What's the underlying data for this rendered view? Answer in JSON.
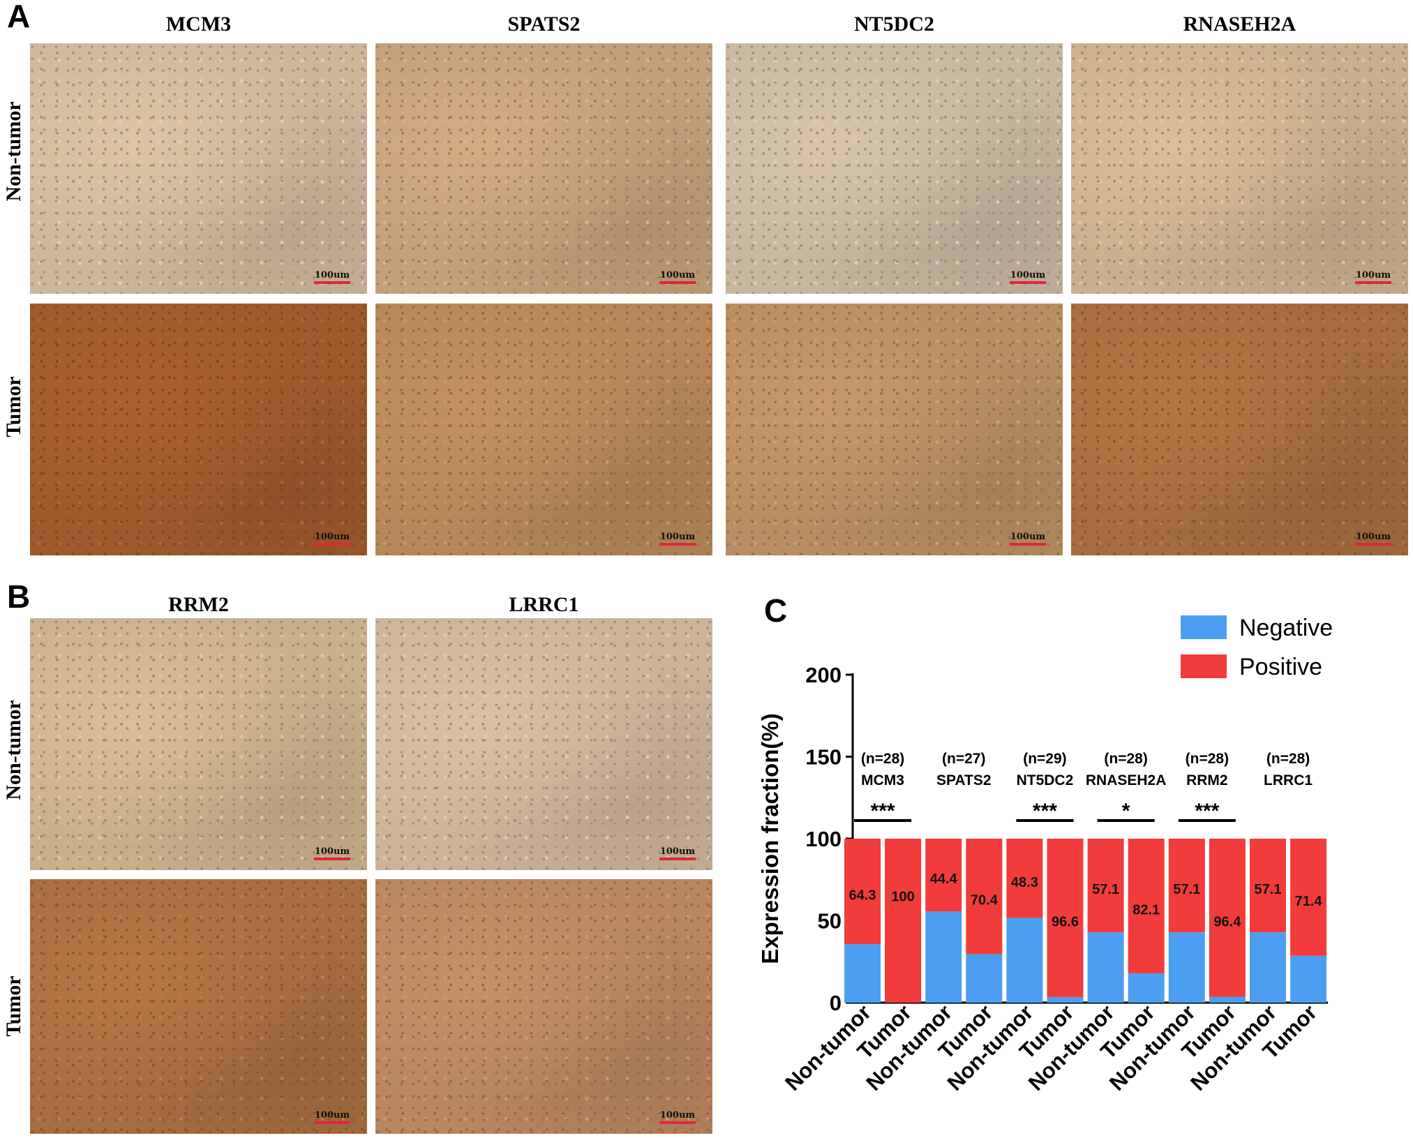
{
  "panel_labels": {
    "A": "A",
    "B": "B",
    "C": "C"
  },
  "row_labels": {
    "non_tumor": "Non-tumor",
    "tumor": "Tumor"
  },
  "scale_bar_label": "100um",
  "panel_a_genes": [
    "MCM3",
    "SPATS2",
    "NT5DC2",
    "RNASEH2A"
  ],
  "panel_b_genes": [
    "RRM2",
    "LRRC1"
  ],
  "stain_colors": {
    "non_tumor": [
      "#cdb79b",
      "#c3a07a",
      "#c8b69f",
      "#cbb08f"
    ],
    "tumor": [
      "#9e5a2c",
      "#b68758",
      "#b88e62",
      "#a56d3e"
    ],
    "b_non_tumor": [
      "#cbb08d",
      "#cdb39a"
    ],
    "b_tumor": [
      "#a86e40",
      "#b9865f"
    ]
  },
  "chart_data": {
    "type": "bar",
    "stacked": true,
    "ylabel": "Expression fraction(%)",
    "ylim": [
      0,
      200
    ],
    "yticks": [
      0,
      50,
      100,
      150,
      200
    ],
    "categories": [
      "Non-tumor",
      "Tumor",
      "Non-tumor",
      "Tumor",
      "Non-tumor",
      "Tumor",
      "Non-tumor",
      "Tumor",
      "Non-tumor",
      "Tumor",
      "Non-tumor",
      "Tumor"
    ],
    "series": [
      {
        "name": "Negative",
        "color": "#4c9ff0",
        "values": [
          35.7,
          0,
          55.6,
          29.6,
          51.7,
          3.4,
          42.9,
          17.9,
          42.9,
          3.6,
          42.9,
          28.6
        ]
      },
      {
        "name": "Positive",
        "color": "#f23b3b",
        "values": [
          64.3,
          100,
          44.4,
          70.4,
          48.3,
          96.6,
          57.1,
          82.1,
          57.1,
          96.4,
          57.1,
          71.4
        ]
      }
    ],
    "positive_labels": [
      "64.3",
      "100",
      "44.4",
      "70.4",
      "48.3",
      "96.6",
      "57.1",
      "82.1",
      "57.1",
      "96.4",
      "57.1",
      "71.4"
    ],
    "groups": [
      {
        "gene": "MCM3",
        "n": "(n=28)",
        "sig": "***"
      },
      {
        "gene": "SPATS2",
        "n": "(n=27)",
        "sig": ""
      },
      {
        "gene": "NT5DC2",
        "n": "(n=29)",
        "sig": "***"
      },
      {
        "gene": "RNASEH2A",
        "n": "(n=28)",
        "sig": "*"
      },
      {
        "gene": "RRM2",
        "n": "(n=28)",
        "sig": "***"
      },
      {
        "gene": "LRRC1",
        "n": "(n=28)",
        "sig": ""
      }
    ],
    "legend": {
      "position": "top-right",
      "entries": [
        "Negative",
        "Positive"
      ]
    }
  }
}
